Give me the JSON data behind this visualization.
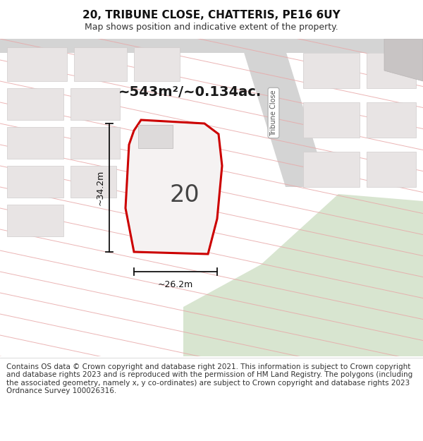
{
  "title": "20, TRIBUNE CLOSE, CHATTERIS, PE16 6UY",
  "subtitle": "Map shows position and indicative extent of the property.",
  "area_text": "~543m²/~0.134ac.",
  "label_20": "20",
  "dim_height": "~34.2m",
  "dim_width": "~26.2m",
  "street_label": "Tribune Close",
  "footer": "Contains OS data © Crown copyright and database right 2021. This information is subject to Crown copyright and database rights 2023 and is reproduced with the permission of HM Land Registry. The polygons (including the associated geometry, namely x, y co-ordinates) are subject to Crown copyright and database rights 2023 Ordnance Survey 100026316.",
  "bg_color": "#ffffff",
  "map_bg": "#f2eeee",
  "red_border": "#cc0000",
  "title_fontsize": 11,
  "subtitle_fontsize": 9,
  "footer_fontsize": 7.5
}
